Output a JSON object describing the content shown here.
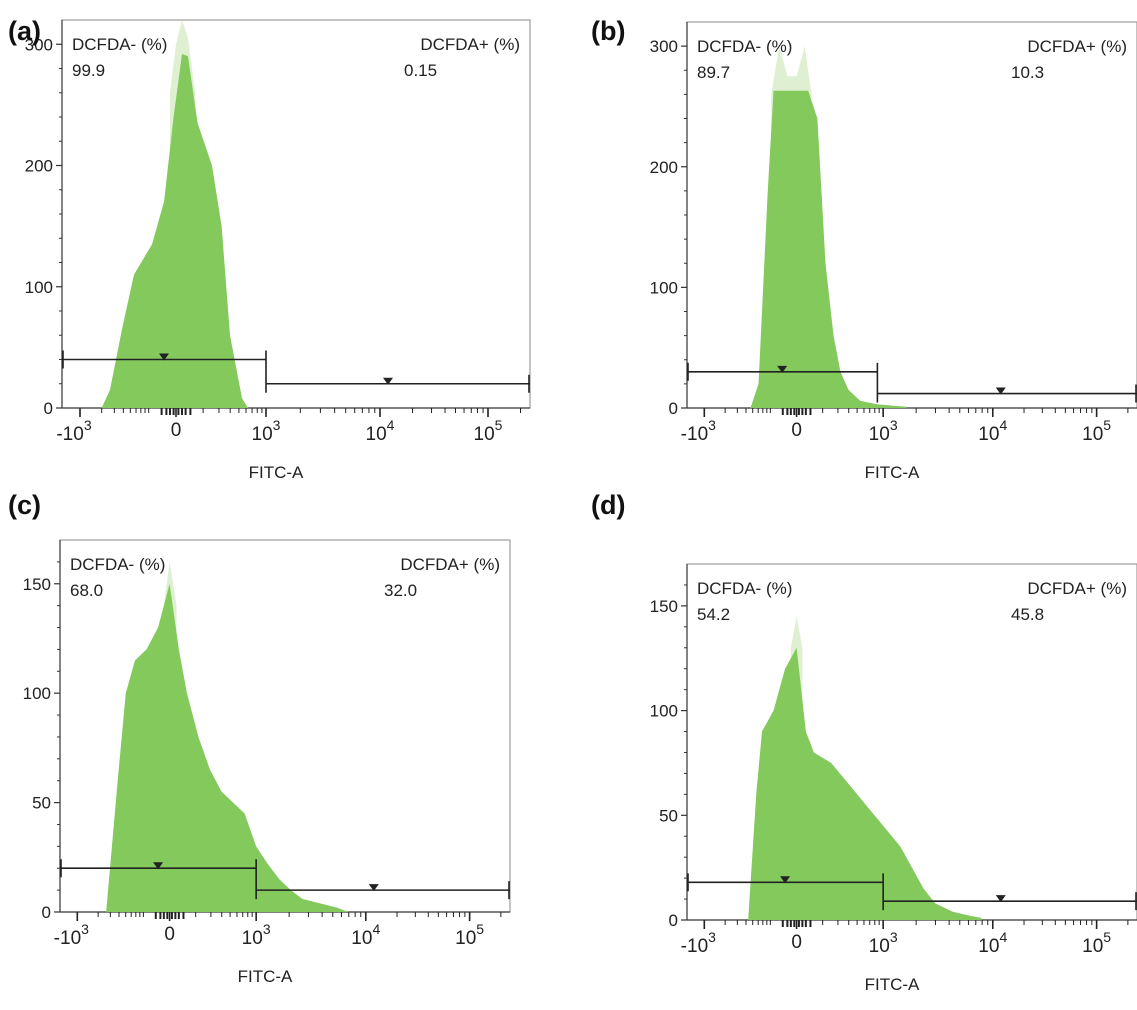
{
  "chart_data": [
    {
      "type": "area",
      "panel_label": "(a)",
      "xlabel": "FITC-A",
      "x_ticks": [
        "-10^3",
        "0",
        "10^3",
        "10^4",
        "10^5"
      ],
      "y_ticks": [
        "0",
        "100",
        "200",
        "300"
      ],
      "ylim": [
        0,
        320
      ],
      "gates": [
        {
          "name": "DCFDA- (%)",
          "value": "99.9",
          "level": 40
        },
        {
          "name": "DCFDA+ (%)",
          "value": "0.15",
          "level": 20
        }
      ],
      "profile": [
        [
          -0.95,
          0
        ],
        [
          -0.62,
          0
        ],
        [
          -0.55,
          15
        ],
        [
          -0.45,
          65
        ],
        [
          -0.35,
          110
        ],
        [
          -0.2,
          135
        ],
        [
          -0.1,
          170
        ],
        [
          -0.02,
          240
        ],
        [
          0.05,
          292
        ],
        [
          0.1,
          290
        ],
        [
          0.18,
          235
        ],
        [
          0.3,
          200
        ],
        [
          0.38,
          150
        ],
        [
          0.45,
          60
        ],
        [
          0.55,
          8
        ],
        [
          0.6,
          0
        ]
      ],
      "cap": [
        [
          -0.05,
          260
        ],
        [
          0.0,
          300
        ],
        [
          0.05,
          320
        ],
        [
          0.1,
          305
        ],
        [
          0.16,
          260
        ]
      ],
      "colors": {
        "fill": "#83c95c",
        "cap": "#dff0d2",
        "frame": "#666666",
        "gate": "#222222"
      }
    },
    {
      "type": "area",
      "panel_label": "(b)",
      "xlabel": "FITC-A",
      "x_ticks": [
        "-10^3",
        "0",
        "10^3",
        "10^4",
        "10^5"
      ],
      "y_ticks": [
        "0",
        "100",
        "200",
        "300"
      ],
      "ylim": [
        0,
        320
      ],
      "gates": [
        {
          "name": "DCFDA- (%)",
          "value": "89.7",
          "level": 30
        },
        {
          "name": "DCFDA+ (%)",
          "value": "10.3",
          "level": 12
        }
      ],
      "profile": [
        [
          -0.95,
          0
        ],
        [
          -0.4,
          0
        ],
        [
          -0.33,
          20
        ],
        [
          -0.25,
          180
        ],
        [
          -0.2,
          263
        ],
        [
          0.1,
          263
        ],
        [
          0.18,
          240
        ],
        [
          0.25,
          120
        ],
        [
          0.32,
          60
        ],
        [
          0.38,
          30
        ],
        [
          0.45,
          15
        ],
        [
          0.55,
          6
        ],
        [
          0.7,
          3
        ],
        [
          0.95,
          1
        ]
      ],
      "cap": [
        [
          -0.22,
          260
        ],
        [
          -0.15,
          300
        ],
        [
          -0.08,
          275
        ],
        [
          0.0,
          275
        ],
        [
          0.07,
          300
        ],
        [
          0.13,
          260
        ]
      ],
      "colors": {
        "fill": "#83c95c",
        "cap": "#dff0d2",
        "frame": "#666666",
        "gate": "#222222"
      }
    },
    {
      "type": "area",
      "panel_label": "(c)",
      "xlabel": "FITC-A",
      "x_ticks": [
        "-10^3",
        "0",
        "10^3",
        "10^4",
        "10^5"
      ],
      "y_ticks": [
        "0",
        "50",
        "100",
        "150"
      ],
      "ylim": [
        0,
        170
      ],
      "gates": [
        {
          "name": "DCFDA- (%)",
          "value": "68.0",
          "level": 20
        },
        {
          "name": "DCFDA+ (%)",
          "value": "32.0",
          "level": 10
        }
      ],
      "profile": [
        [
          -0.95,
          0
        ],
        [
          -0.55,
          0
        ],
        [
          -0.45,
          60
        ],
        [
          -0.38,
          100
        ],
        [
          -0.3,
          115
        ],
        [
          -0.2,
          120
        ],
        [
          -0.1,
          130
        ],
        [
          0.0,
          150
        ],
        [
          0.08,
          120
        ],
        [
          0.15,
          100
        ],
        [
          0.25,
          80
        ],
        [
          0.35,
          65
        ],
        [
          0.45,
          55
        ],
        [
          0.55,
          50
        ],
        [
          0.65,
          45
        ],
        [
          0.75,
          30
        ],
        [
          0.85,
          22
        ],
        [
          0.95,
          15
        ],
        [
          1.05,
          10
        ],
        [
          1.15,
          6
        ],
        [
          1.3,
          4
        ],
        [
          1.45,
          2
        ],
        [
          1.55,
          0
        ]
      ],
      "cap": [
        [
          -0.05,
          140
        ],
        [
          0.0,
          160
        ],
        [
          0.06,
          140
        ]
      ],
      "colors": {
        "fill": "#83c95c",
        "cap": "#dff0d2",
        "frame": "#666666",
        "gate": "#222222"
      }
    },
    {
      "type": "area",
      "panel_label": "(d)",
      "xlabel": "FITC-A",
      "x_ticks": [
        "-10^3",
        "0",
        "10^3",
        "10^4",
        "10^5"
      ],
      "y_ticks": [
        "0",
        "50",
        "100",
        "150"
      ],
      "ylim": [
        0,
        170
      ],
      "gates": [
        {
          "name": "DCFDA- (%)",
          "value": "54.2",
          "level": 18
        },
        {
          "name": "DCFDA+ (%)",
          "value": "45.8",
          "level": 9
        }
      ],
      "profile": [
        [
          -0.95,
          0
        ],
        [
          -0.42,
          0
        ],
        [
          -0.35,
          60
        ],
        [
          -0.3,
          90
        ],
        [
          -0.2,
          100
        ],
        [
          -0.1,
          120
        ],
        [
          0.0,
          130
        ],
        [
          0.08,
          90
        ],
        [
          0.15,
          80
        ],
        [
          0.3,
          75
        ],
        [
          0.45,
          65
        ],
        [
          0.6,
          55
        ],
        [
          0.75,
          45
        ],
        [
          0.9,
          35
        ],
        [
          1.0,
          25
        ],
        [
          1.1,
          15
        ],
        [
          1.2,
          8
        ],
        [
          1.35,
          4
        ],
        [
          1.5,
          2
        ],
        [
          1.6,
          1
        ]
      ],
      "cap": [
        [
          -0.05,
          130
        ],
        [
          0.0,
          145
        ],
        [
          0.05,
          130
        ]
      ],
      "colors": {
        "fill": "#83c95c",
        "cap": "#dff0d2",
        "frame": "#666666",
        "gate": "#222222"
      }
    }
  ]
}
